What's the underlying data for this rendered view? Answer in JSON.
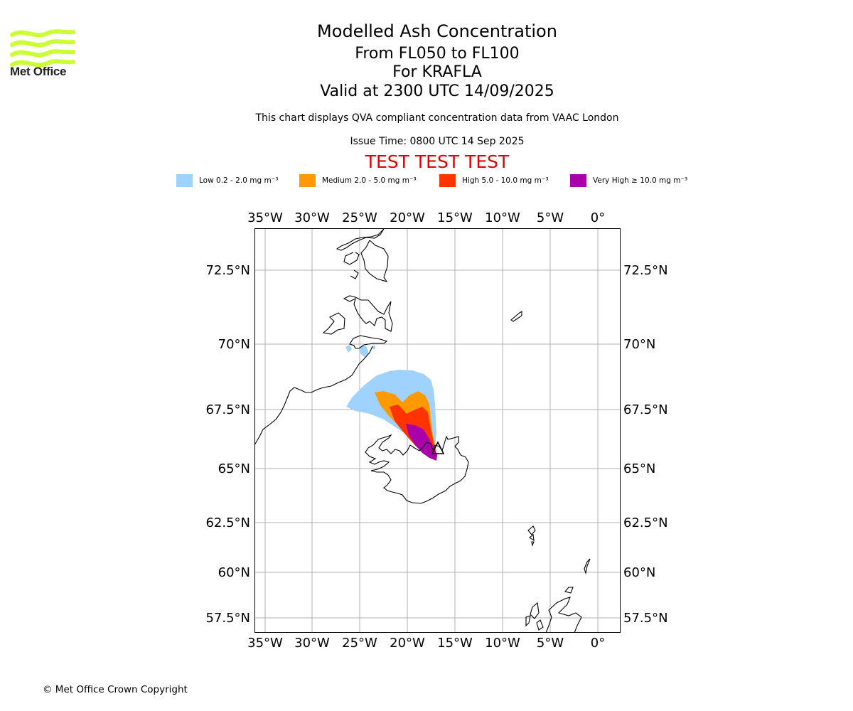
{
  "header": {
    "title_line1": "Modelled Ash Concentration",
    "title_line2": "From FL050 to FL100",
    "title_line3": "For KRAFLA",
    "title_line4": "Valid at 2300 UTC 14/09/2025",
    "description": "This chart displays QVA compliant concentration data from VAAC London",
    "issue_time": "Issue Time: 0800 UTC 14 Sep 2025",
    "test_banner": "TEST TEST TEST"
  },
  "logo": {
    "text": "Met Office",
    "icon": "met-office-wave-logo",
    "color": "#ccff33"
  },
  "legend": [
    {
      "label": "Low 0.2 - 2.0 mg m⁻³",
      "color": "#a0d2ff"
    },
    {
      "label": "Medium 2.0 - 5.0 mg m⁻³",
      "color": "#ff9900"
    },
    {
      "label": "High 5.0 - 10.0 mg m⁻³",
      "color": "#ff3300"
    },
    {
      "label": "Very High ≥ 10.0 mg m⁻³",
      "color": "#aa00aa"
    }
  ],
  "map": {
    "projection": "lat-lon",
    "lon_range": [
      -36.1,
      2.4
    ],
    "lat_range": [
      56.9,
      74.1
    ],
    "grid": true,
    "lon_ticks": [
      "35°W",
      "30°W",
      "25°W",
      "20°W",
      "15°W",
      "10°W",
      "5°W",
      "0°"
    ],
    "lat_ticks": [
      "72.5°N",
      "70°N",
      "67.5°N",
      "65°N",
      "62.5°N",
      "60°N",
      "57.5°N"
    ],
    "volcano": {
      "name": "KRAFLA",
      "marker": "triangle-icon"
    }
  },
  "footer": {
    "copyright": "© Met Office Crown Copyright"
  }
}
